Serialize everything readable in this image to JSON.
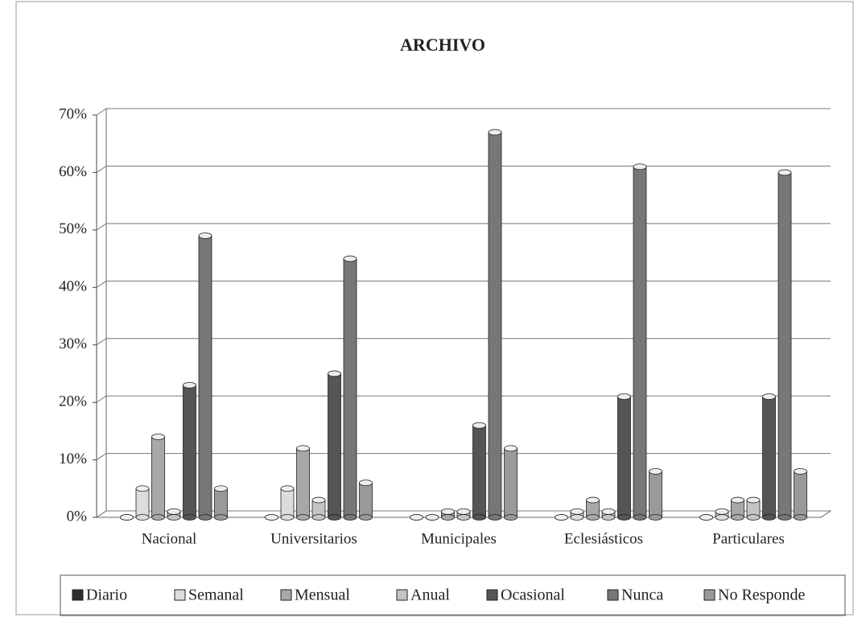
{
  "chart_data": {
    "type": "bar",
    "title": "ARCHIVO",
    "categories": [
      "Nacional",
      "Universitarios",
      "Municipales",
      "Eclesiásticos",
      "Particulares"
    ],
    "series": [
      {
        "name": "Diario",
        "color": "#2e2e2e",
        "values": [
          0,
          0,
          0,
          0,
          0
        ]
      },
      {
        "name": "Semanal",
        "color": "#dcdcdc",
        "values": [
          5,
          5,
          0,
          1,
          1
        ]
      },
      {
        "name": "Mensual",
        "color": "#a8a8a8",
        "values": [
          14,
          12,
          1,
          3,
          3
        ]
      },
      {
        "name": "Anual",
        "color": "#c4c4c4",
        "values": [
          1,
          3,
          1,
          1,
          3
        ]
      },
      {
        "name": "Ocasional",
        "color": "#555555",
        "values": [
          23,
          25,
          16,
          21,
          21
        ]
      },
      {
        "name": "Nunca",
        "color": "#777777",
        "values": [
          49,
          45,
          67,
          61,
          60
        ]
      },
      {
        "name": "No Responde",
        "color": "#9a9a9a",
        "values": [
          5,
          6,
          12,
          8,
          8
        ]
      }
    ],
    "ylim": [
      0,
      70
    ],
    "yticks": [
      {
        "value": 0,
        "label": "0%"
      },
      {
        "value": 10,
        "label": "10%"
      },
      {
        "value": 20,
        "label": "20%"
      },
      {
        "value": 30,
        "label": "30%"
      },
      {
        "value": 40,
        "label": "40%"
      },
      {
        "value": 50,
        "label": "50%"
      },
      {
        "value": 60,
        "label": "60%"
      },
      {
        "value": 70,
        "label": "70%"
      }
    ],
    "grid": true,
    "legend": "bottom"
  }
}
